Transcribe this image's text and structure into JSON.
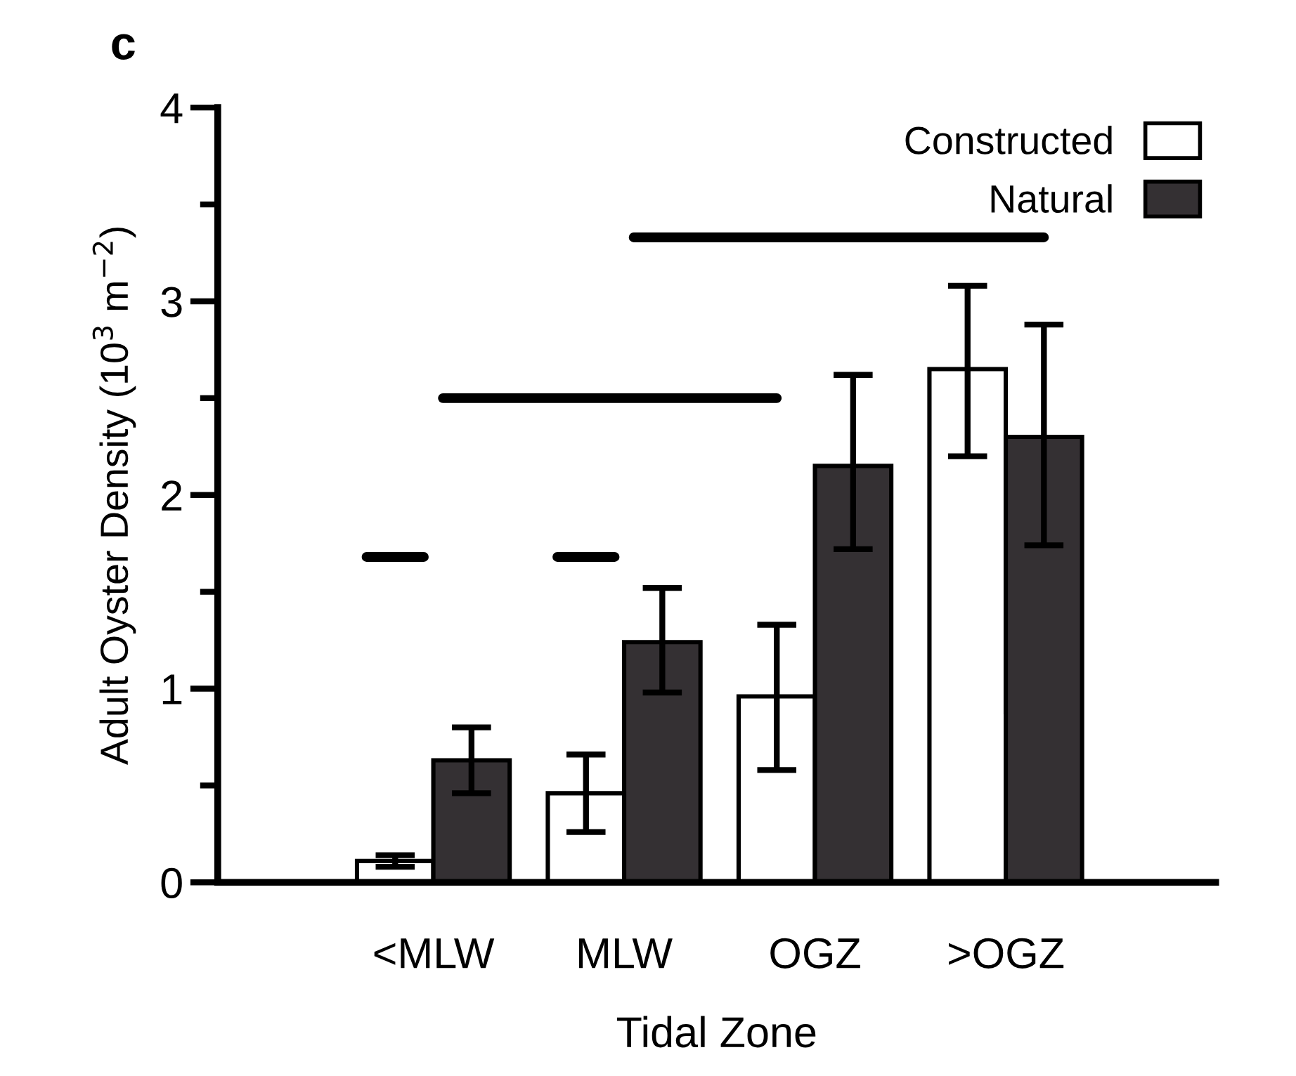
{
  "chart_data": {
    "type": "bar",
    "xlabel": "Tidal Zone",
    "ylabel": "Adult Oyster Density (10$^{3}$ m$^{−2}$)",
    "categories": [
      "<MLW",
      "MLW",
      "OGZ",
      ">OGZ"
    ],
    "series": [
      {
        "name": "Constructed",
        "color": "#ffffff",
        "values": [
          0.11,
          0.46,
          0.96,
          2.65
        ],
        "errors": [
          [
            0.08,
            0.14
          ],
          [
            0.26,
            0.66
          ],
          [
            0.58,
            1.33
          ],
          [
            2.2,
            3.08
          ]
        ]
      },
      {
        "name": "Natural",
        "color": "#343033",
        "values": [
          0.63,
          1.24,
          2.15,
          2.3
        ],
        "errors": [
          [
            0.46,
            0.8
          ],
          [
            0.98,
            1.52
          ],
          [
            1.72,
            2.62
          ],
          [
            1.74,
            2.88
          ]
        ]
      }
    ],
    "ylim": [
      0,
      4
    ],
    "yticks": [
      0,
      {
        "value": 0.5,
        "label": null
      },
      1,
      {
        "value": 1.5,
        "label": null
      },
      2,
      {
        "value": 2.5,
        "label": null
      },
      3,
      {
        "value": 3.5,
        "label": null
      },
      4
    ],
    "legend": "top right",
    "grid": false,
    "annotations": [
      "c"
    ]
  }
}
